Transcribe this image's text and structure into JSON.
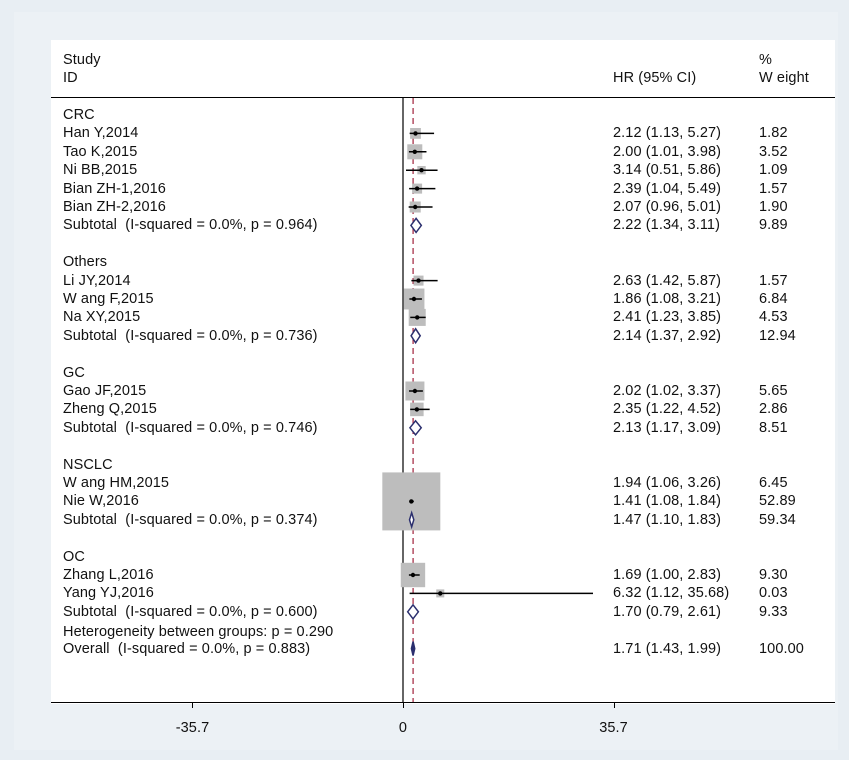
{
  "chart_data": {
    "type": "forest",
    "headers": {
      "study_line1": "Study",
      "study_line2": "ID",
      "hr": "HR (95% CI)",
      "weight_line1": "%",
      "weight_line2": "W eight"
    },
    "x_ticks": [
      {
        "value": -35.7,
        "label": "-35.7"
      },
      {
        "value": 0,
        "label": "0"
      },
      {
        "value": 35.7,
        "label": "35.7"
      }
    ],
    "null_line": 0,
    "overall_effect": 1.71,
    "groups": [
      {
        "name": "CRC",
        "studies": [
          {
            "label": "Han Y,2014",
            "hr": 2.12,
            "lo": 1.13,
            "hi": 5.27,
            "ci_text": "2.12 (1.13, 5.27)",
            "weight": 1.82,
            "weight_text": "1.82"
          },
          {
            "label": "Tao K,2015",
            "hr": 2.0,
            "lo": 1.01,
            "hi": 3.98,
            "ci_text": "2.00 (1.01, 3.98)",
            "weight": 3.52,
            "weight_text": "3.52"
          },
          {
            "label": "Ni BB,2015",
            "hr": 3.14,
            "lo": 0.51,
            "hi": 5.86,
            "ci_text": "3.14 (0.51, 5.86)",
            "weight": 1.09,
            "weight_text": "1.09"
          },
          {
            "label": "Bian ZH-1,2016",
            "hr": 2.39,
            "lo": 1.04,
            "hi": 5.49,
            "ci_text": "2.39 (1.04, 5.49)",
            "weight": 1.57,
            "weight_text": "1.57"
          },
          {
            "label": "Bian ZH-2,2016",
            "hr": 2.07,
            "lo": 0.96,
            "hi": 5.01,
            "ci_text": "2.07 (0.96, 5.01)",
            "weight": 1.9,
            "weight_text": "1.90"
          }
        ],
        "subtotal": {
          "label": "Subtotal  (I-squared = 0.0%, p = 0.964)",
          "hr": 2.22,
          "lo": 1.34,
          "hi": 3.11,
          "ci_text": "2.22 (1.34, 3.11)",
          "weight_text": "9.89"
        }
      },
      {
        "name": "Others",
        "studies": [
          {
            "label": "Li JY,2014",
            "hr": 2.63,
            "lo": 1.42,
            "hi": 5.87,
            "ci_text": "2.63 (1.42, 5.87)",
            "weight": 1.57,
            "weight_text": "1.57"
          },
          {
            "label": "W ang F,2015",
            "hr": 1.86,
            "lo": 1.08,
            "hi": 3.21,
            "ci_text": "1.86 (1.08, 3.21)",
            "weight": 6.84,
            "weight_text": "6.84"
          },
          {
            "label": "Na XY,2015",
            "hr": 2.41,
            "lo": 1.23,
            "hi": 3.85,
            "ci_text": "2.41 (1.23, 3.85)",
            "weight": 4.53,
            "weight_text": "4.53"
          }
        ],
        "subtotal": {
          "label": "Subtotal  (I-squared = 0.0%, p = 0.736)",
          "hr": 2.14,
          "lo": 1.37,
          "hi": 2.92,
          "ci_text": "2.14 (1.37, 2.92)",
          "weight_text": "12.94"
        }
      },
      {
        "name": "GC",
        "studies": [
          {
            "label": "Gao JF,2015",
            "hr": 2.02,
            "lo": 1.02,
            "hi": 3.37,
            "ci_text": "2.02 (1.02, 3.37)",
            "weight": 5.65,
            "weight_text": "5.65"
          },
          {
            "label": "Zheng Q,2015",
            "hr": 2.35,
            "lo": 1.22,
            "hi": 4.52,
            "ci_text": "2.35 (1.22, 4.52)",
            "weight": 2.86,
            "weight_text": "2.86"
          }
        ],
        "subtotal": {
          "label": "Subtotal  (I-squared = 0.0%, p = 0.746)",
          "hr": 2.13,
          "lo": 1.17,
          "hi": 3.09,
          "ci_text": "2.13 (1.17, 3.09)",
          "weight_text": "8.51"
        }
      },
      {
        "name": "NSCLC",
        "studies": [
          {
            "label": "W ang HM,2015",
            "hr": 1.94,
            "lo": 1.06,
            "hi": 3.26,
            "ci_text": "1.94 (1.06, 3.26)",
            "weight": 6.45,
            "weight_text": "6.45"
          },
          {
            "label": "Nie W,2016",
            "hr": 1.41,
            "lo": 1.08,
            "hi": 1.84,
            "ci_text": "1.41 (1.08, 1.84)",
            "weight": 52.89,
            "weight_text": "52.89"
          }
        ],
        "subtotal": {
          "label": "Subtotal  (I-squared = 0.0%, p = 0.374)",
          "hr": 1.47,
          "lo": 1.1,
          "hi": 1.83,
          "ci_text": "1.47 (1.10, 1.83)",
          "weight_text": "59.34"
        }
      },
      {
        "name": "OC",
        "studies": [
          {
            "label": "Zhang L,2016",
            "hr": 1.69,
            "lo": 1.0,
            "hi": 2.83,
            "ci_text": "1.69 (1.00, 2.83)",
            "weight": 9.3,
            "weight_text": "9.30"
          },
          {
            "label": "Yang YJ,2016",
            "hr": 6.32,
            "lo": 1.12,
            "hi": 35.68,
            "ci_text": "6.32 (1.12, 35.68)",
            "weight": 0.03,
            "weight_text": "0.03"
          }
        ],
        "subtotal": {
          "label": "Subtotal  (I-squared = 0.0%, p = 0.600)",
          "hr": 1.7,
          "lo": 0.79,
          "hi": 2.61,
          "ci_text": "1.70 (0.79, 2.61)",
          "weight_text": "9.33"
        }
      }
    ],
    "heterogeneity": "Heterogeneity between groups: p = 0.290",
    "overall": {
      "label": "Overall  (I-squared = 0.0%, p = 0.883)",
      "hr": 1.71,
      "lo": 1.43,
      "hi": 1.99,
      "ci_text": "1.71 (1.43, 1.99)",
      "weight_text": "100.00"
    },
    "colors": {
      "box": "#bdbdbd",
      "diamond": "#2b2f6e",
      "null_line": "#000000",
      "effect_line": "#a0203a",
      "ci_line": "#000000"
    }
  }
}
